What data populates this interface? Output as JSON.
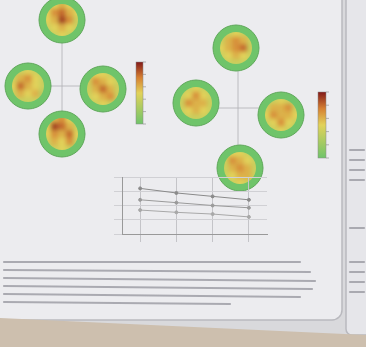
{
  "figure": {
    "panels": [
      {
        "colorbar_range": [
          0,
          1
        ],
        "discs": [
          {
            "cells": [
              [
                0.3,
                0.5,
                0.6,
                0.5,
                0.3
              ],
              [
                0.5,
                0.7,
                0.8,
                0.6,
                0.5
              ],
              [
                0.5,
                0.6,
                0.9,
                0.7,
                0.4
              ],
              [
                0.4,
                0.5,
                0.6,
                0.5,
                0.4
              ],
              [
                0.3,
                0.4,
                0.5,
                0.4,
                0.3
              ]
            ]
          },
          {
            "cells": [
              [
                0.3,
                0.4,
                0.5,
                0.4,
                0.3
              ],
              [
                0.4,
                0.6,
                0.7,
                0.5,
                0.4
              ],
              [
                0.5,
                0.8,
                0.6,
                0.5,
                0.4
              ],
              [
                0.4,
                0.6,
                0.5,
                0.6,
                0.3
              ],
              [
                0.3,
                0.4,
                0.4,
                0.4,
                0.3
              ]
            ]
          },
          {
            "cells": [
              [
                0.3,
                0.5,
                0.5,
                0.4,
                0.3
              ],
              [
                0.4,
                0.7,
                0.6,
                0.5,
                0.4
              ],
              [
                0.4,
                0.6,
                0.8,
                0.6,
                0.4
              ],
              [
                0.4,
                0.5,
                0.6,
                0.7,
                0.4
              ],
              [
                0.3,
                0.4,
                0.5,
                0.4,
                0.3
              ]
            ]
          },
          {
            "cells": [
              [
                0.3,
                0.6,
                0.7,
                0.5,
                0.3
              ],
              [
                0.5,
                0.9,
                0.8,
                0.6,
                0.4
              ],
              [
                0.5,
                0.7,
                0.6,
                0.8,
                0.5
              ],
              [
                0.4,
                0.6,
                0.5,
                0.7,
                0.4
              ],
              [
                0.3,
                0.4,
                0.5,
                0.4,
                0.3
              ]
            ]
          }
        ]
      },
      {
        "colorbar_range": [
          0,
          1
        ],
        "discs": [
          {
            "cells": [
              [
                0.3,
                0.4,
                0.5,
                0.4,
                0.3
              ],
              [
                0.4,
                0.6,
                0.7,
                0.6,
                0.4
              ],
              [
                0.5,
                0.6,
                0.7,
                0.8,
                0.4
              ],
              [
                0.4,
                0.5,
                0.6,
                0.5,
                0.4
              ],
              [
                0.3,
                0.4,
                0.4,
                0.4,
                0.3
              ]
            ]
          },
          {
            "cells": [
              [
                0.3,
                0.4,
                0.5,
                0.4,
                0.3
              ],
              [
                0.4,
                0.5,
                0.7,
                0.5,
                0.4
              ],
              [
                0.4,
                0.7,
                0.6,
                0.6,
                0.4
              ],
              [
                0.4,
                0.5,
                0.6,
                0.5,
                0.4
              ],
              [
                0.3,
                0.4,
                0.4,
                0.4,
                0.3
              ]
            ]
          },
          {
            "cells": [
              [
                0.3,
                0.4,
                0.5,
                0.4,
                0.3
              ],
              [
                0.4,
                0.6,
                0.6,
                0.7,
                0.4
              ],
              [
                0.5,
                0.7,
                0.6,
                0.6,
                0.5
              ],
              [
                0.4,
                0.5,
                0.7,
                0.5,
                0.4
              ],
              [
                0.3,
                0.4,
                0.5,
                0.4,
                0.3
              ]
            ]
          },
          {
            "cells": [
              [
                0.3,
                0.5,
                0.5,
                0.4,
                0.3
              ],
              [
                0.4,
                0.7,
                0.6,
                0.5,
                0.4
              ],
              [
                0.4,
                0.6,
                0.7,
                0.6,
                0.4
              ],
              [
                0.4,
                0.5,
                0.6,
                0.6,
                0.4
              ],
              [
                0.3,
                0.4,
                0.5,
                0.4,
                0.3
              ]
            ]
          }
        ]
      }
    ]
  },
  "chart_data": {
    "type": "line",
    "categories": [
      null,
      null,
      null,
      null
    ],
    "series": [
      {
        "color": "#8a8a8a",
        "values": [
          0.8,
          0.72,
          0.66,
          0.6
        ]
      },
      {
        "color": "#9a9a9a",
        "values": [
          0.6,
          0.55,
          0.5,
          0.46
        ]
      },
      {
        "color": "#a8a8a8",
        "values": [
          0.42,
          0.38,
          0.35,
          0.3
        ]
      }
    ],
    "ylim": [
      0,
      1
    ],
    "yticks": [
      0,
      0.25,
      0.5,
      0.75,
      1
    ],
    "grid": true,
    "tick_labels": false
  }
}
